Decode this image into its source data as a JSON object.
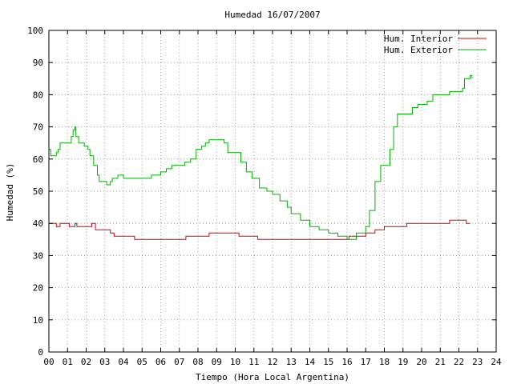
{
  "chart_data": {
    "type": "line",
    "title": "Humedad 16/07/2007",
    "xlabel": "Tiempo (Hora Local Argentina)",
    "ylabel": "Humedad (%)",
    "xlim": [
      0,
      24
    ],
    "ylim": [
      0,
      100
    ],
    "x_ticks": [
      "00",
      "01",
      "02",
      "03",
      "04",
      "05",
      "06",
      "07",
      "08",
      "09",
      "10",
      "11",
      "12",
      "13",
      "14",
      "15",
      "16",
      "17",
      "18",
      "19",
      "20",
      "21",
      "22",
      "23",
      "24"
    ],
    "y_ticks": [
      "0",
      "10",
      "20",
      "30",
      "40",
      "50",
      "60",
      "70",
      "80",
      "90",
      "100"
    ],
    "grid": true,
    "legend_position": "top-right",
    "series": [
      {
        "name": "Hum. Interior",
        "color": "#e00000",
        "points": [
          [
            0.0,
            40
          ],
          [
            0.3,
            40
          ],
          [
            0.4,
            39
          ],
          [
            0.6,
            40
          ],
          [
            1.0,
            40
          ],
          [
            1.1,
            39
          ],
          [
            1.4,
            40
          ],
          [
            1.5,
            39
          ],
          [
            2.2,
            39
          ],
          [
            2.3,
            40
          ],
          [
            2.5,
            38
          ],
          [
            3.0,
            38
          ],
          [
            3.3,
            37
          ],
          [
            3.5,
            36
          ],
          [
            4.0,
            36
          ],
          [
            4.5,
            36
          ],
          [
            4.6,
            35
          ],
          [
            5.5,
            35
          ],
          [
            6.5,
            35
          ],
          [
            7.3,
            35
          ],
          [
            7.35,
            36
          ],
          [
            8.0,
            36
          ],
          [
            8.5,
            36
          ],
          [
            8.6,
            37
          ],
          [
            10.0,
            37
          ],
          [
            10.2,
            36
          ],
          [
            11.0,
            36
          ],
          [
            11.2,
            35
          ],
          [
            12.5,
            35
          ],
          [
            13.0,
            35
          ],
          [
            14.0,
            35
          ],
          [
            14.5,
            35
          ],
          [
            15.0,
            35
          ],
          [
            15.5,
            35
          ],
          [
            16.0,
            35
          ],
          [
            16.1,
            36
          ],
          [
            16.8,
            36
          ],
          [
            17.0,
            37
          ],
          [
            17.5,
            38
          ],
          [
            18.0,
            39
          ],
          [
            18.5,
            39
          ],
          [
            19.0,
            39
          ],
          [
            19.2,
            40
          ],
          [
            20.0,
            40
          ],
          [
            21.0,
            40
          ],
          [
            21.5,
            41
          ],
          [
            22.0,
            41
          ],
          [
            22.3,
            41
          ],
          [
            22.4,
            40
          ],
          [
            22.6,
            40
          ]
        ]
      },
      {
        "name": "Hum. Exterior",
        "color": "#00b000",
        "points": [
          [
            0.0,
            63
          ],
          [
            0.1,
            61
          ],
          [
            0.3,
            61
          ],
          [
            0.4,
            62
          ],
          [
            0.5,
            63
          ],
          [
            0.6,
            65
          ],
          [
            1.0,
            65
          ],
          [
            1.2,
            67
          ],
          [
            1.3,
            69
          ],
          [
            1.4,
            70
          ],
          [
            1.45,
            67
          ],
          [
            1.6,
            65
          ],
          [
            1.9,
            64
          ],
          [
            2.1,
            63
          ],
          [
            2.2,
            61
          ],
          [
            2.4,
            58
          ],
          [
            2.6,
            55
          ],
          [
            2.7,
            53
          ],
          [
            3.0,
            53
          ],
          [
            3.1,
            52
          ],
          [
            3.3,
            53
          ],
          [
            3.4,
            54
          ],
          [
            3.7,
            55
          ],
          [
            4.0,
            54
          ],
          [
            5.0,
            54
          ],
          [
            5.5,
            55
          ],
          [
            6.0,
            56
          ],
          [
            6.3,
            57
          ],
          [
            6.6,
            58
          ],
          [
            7.0,
            58
          ],
          [
            7.3,
            59
          ],
          [
            7.6,
            60
          ],
          [
            7.9,
            63
          ],
          [
            8.2,
            64
          ],
          [
            8.4,
            65
          ],
          [
            8.6,
            66
          ],
          [
            9.2,
            66
          ],
          [
            9.4,
            65
          ],
          [
            9.6,
            62
          ],
          [
            10.0,
            62
          ],
          [
            10.3,
            59
          ],
          [
            10.6,
            56
          ],
          [
            10.9,
            54
          ],
          [
            11.3,
            51
          ],
          [
            11.7,
            50
          ],
          [
            12.0,
            49
          ],
          [
            12.4,
            47
          ],
          [
            12.8,
            45
          ],
          [
            13.0,
            43
          ],
          [
            13.5,
            41
          ],
          [
            14.0,
            39
          ],
          [
            14.5,
            38
          ],
          [
            15.0,
            37
          ],
          [
            15.5,
            36
          ],
          [
            16.0,
            35
          ],
          [
            16.3,
            35
          ],
          [
            16.5,
            37
          ],
          [
            17.0,
            39
          ],
          [
            17.2,
            44
          ],
          [
            17.5,
            53
          ],
          [
            17.8,
            58
          ],
          [
            18.0,
            58
          ],
          [
            18.3,
            63
          ],
          [
            18.5,
            70
          ],
          [
            18.7,
            74
          ],
          [
            19.2,
            74
          ],
          [
            19.5,
            76
          ],
          [
            19.8,
            77
          ],
          [
            20.3,
            78
          ],
          [
            20.6,
            80
          ],
          [
            21.2,
            80
          ],
          [
            21.5,
            81
          ],
          [
            22.0,
            81
          ],
          [
            22.2,
            82
          ],
          [
            22.3,
            85
          ],
          [
            22.6,
            86
          ],
          [
            22.7,
            85
          ]
        ]
      }
    ]
  }
}
